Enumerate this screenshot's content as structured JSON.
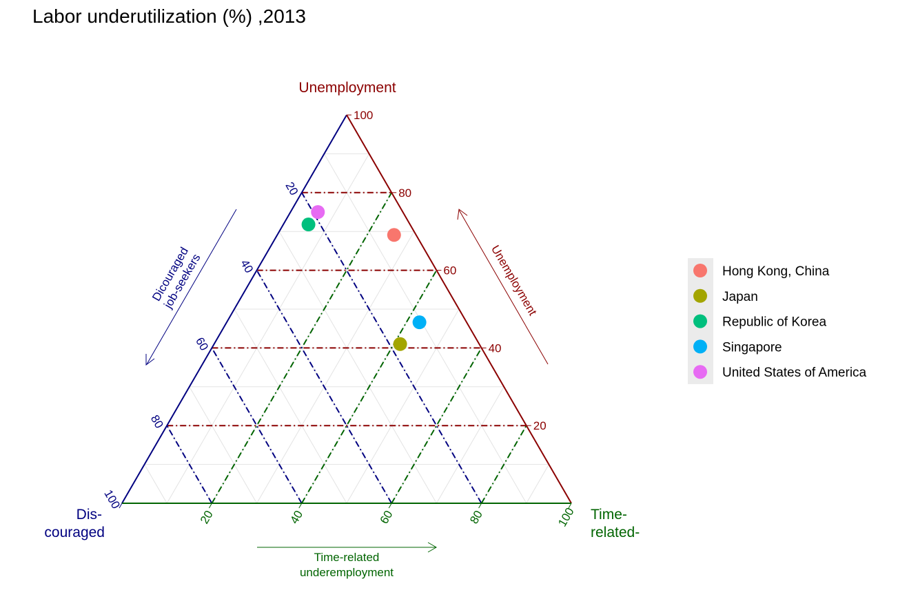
{
  "chart_data": {
    "type": "ternary-scatter",
    "title": "Labor underutilization (%) ,2013",
    "axes": {
      "top": {
        "name": "Unemployment",
        "arrow_label": "Unemployment",
        "color": "#8b0000"
      },
      "left": {
        "name_line1": "Dis-",
        "name_line2": "couraged",
        "arrow_label_line1": "Dicouraged",
        "arrow_label_line2": "job-seekers",
        "color": "#000080"
      },
      "right": {
        "name_line1": "Time-",
        "name_line2": "related-",
        "arrow_label_line1": "Time-related",
        "arrow_label_line2": "underemployment",
        "color": "#006400"
      }
    },
    "ticks": [
      "20",
      "40",
      "60",
      "80",
      "100"
    ],
    "range": [
      0,
      100
    ],
    "legend_position": "right",
    "series": [
      {
        "name": "Hong Kong, China",
        "color": "#f8766d",
        "unemployment": 69.1,
        "discouraged": 4.9,
        "time_related": 26.0
      },
      {
        "name": "Japan",
        "color": "#a3a500",
        "unemployment": 41.0,
        "discouraged": 17.6,
        "time_related": 41.4
      },
      {
        "name": "Republic of Korea",
        "color": "#00bf7d",
        "unemployment": 71.8,
        "discouraged": 22.6,
        "time_related": 5.6
      },
      {
        "name": "Singapore",
        "color": "#00b0f6",
        "unemployment": 46.6,
        "discouraged": 10.5,
        "time_related": 42.9
      },
      {
        "name": "United States of America",
        "color": "#e76bf3",
        "unemployment": 75.0,
        "discouraged": 18.9,
        "time_related": 6.1
      }
    ]
  }
}
